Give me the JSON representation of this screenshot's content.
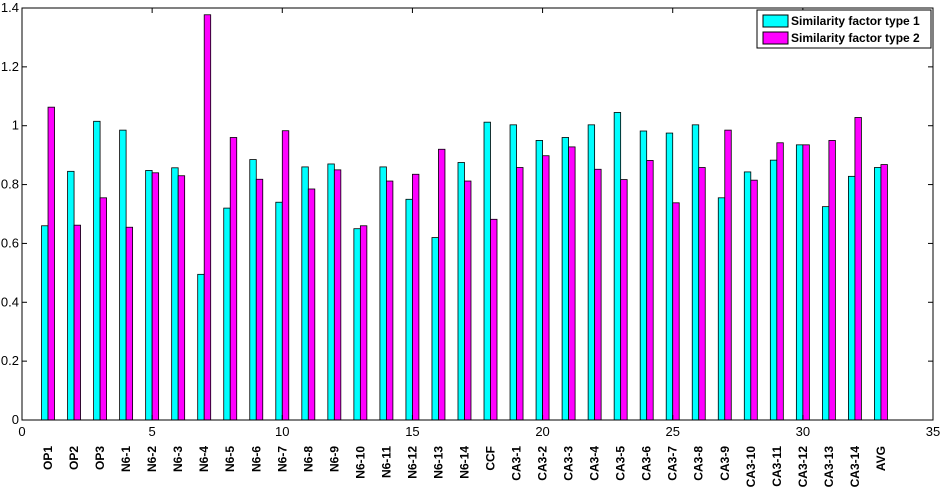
{
  "chart_data": {
    "type": "bar",
    "title": "",
    "xlabel": "",
    "ylabel": "",
    "xlim": [
      0,
      35
    ],
    "ylim": [
      0,
      1.4
    ],
    "x_ticks": [
      0,
      5,
      10,
      15,
      20,
      25,
      30,
      35
    ],
    "x_tick_labels": [
      "0",
      "5",
      "10",
      "15",
      "20",
      "25",
      "30",
      "35"
    ],
    "y_ticks": [
      0,
      0.2,
      0.4,
      0.6,
      0.8,
      1,
      1.2,
      1.4
    ],
    "y_tick_labels": [
      "0",
      "0.2",
      "0.4",
      "0.6",
      "0.8",
      "1",
      "1.2",
      "1.4"
    ],
    "grid": false,
    "legend_position": "top-right",
    "categories": [
      "OP1",
      "OP2",
      "OP3",
      "N6-1",
      "N6-2",
      "N6-3",
      "N6-4",
      "N6-5",
      "N6-6",
      "N6-7",
      "N6-8",
      "N6-9",
      "N6-10",
      "N6-11",
      "N6-12",
      "N6-13",
      "N6-14",
      "CCF",
      "CA3-1",
      "CA3-2",
      "CA3-3",
      "CA3-4",
      "CA3-5",
      "CA3-6",
      "CA3-7",
      "CA3-8",
      "CA3-9",
      "CA3-10",
      "CA3-11",
      "CA3-12",
      "CA3-13",
      "CA3-14",
      "AVG"
    ],
    "series": [
      {
        "name": "Similarity factor type 1",
        "color": "#00ffff",
        "values": [
          0.66,
          0.845,
          1.015,
          0.985,
          0.848,
          0.857,
          0.495,
          0.72,
          0.885,
          0.74,
          0.86,
          0.87,
          0.65,
          0.86,
          0.75,
          0.62,
          0.875,
          1.012,
          1.003,
          0.95,
          0.96,
          1.003,
          1.045,
          0.982,
          0.975,
          1.003,
          0.755,
          0.843,
          0.883,
          0.935,
          0.725,
          0.828,
          0.858
        ]
      },
      {
        "name": "Similarity factor type 2",
        "color": "#ff00ff",
        "values": [
          1.063,
          0.662,
          0.755,
          0.655,
          0.84,
          0.83,
          1.377,
          0.96,
          0.818,
          0.983,
          0.785,
          0.85,
          0.66,
          0.812,
          0.835,
          0.92,
          0.812,
          0.682,
          0.858,
          0.898,
          0.928,
          0.852,
          0.817,
          0.882,
          0.738,
          0.858,
          0.985,
          0.815,
          0.942,
          0.935,
          0.95,
          1.028,
          0.868
        ]
      }
    ]
  }
}
